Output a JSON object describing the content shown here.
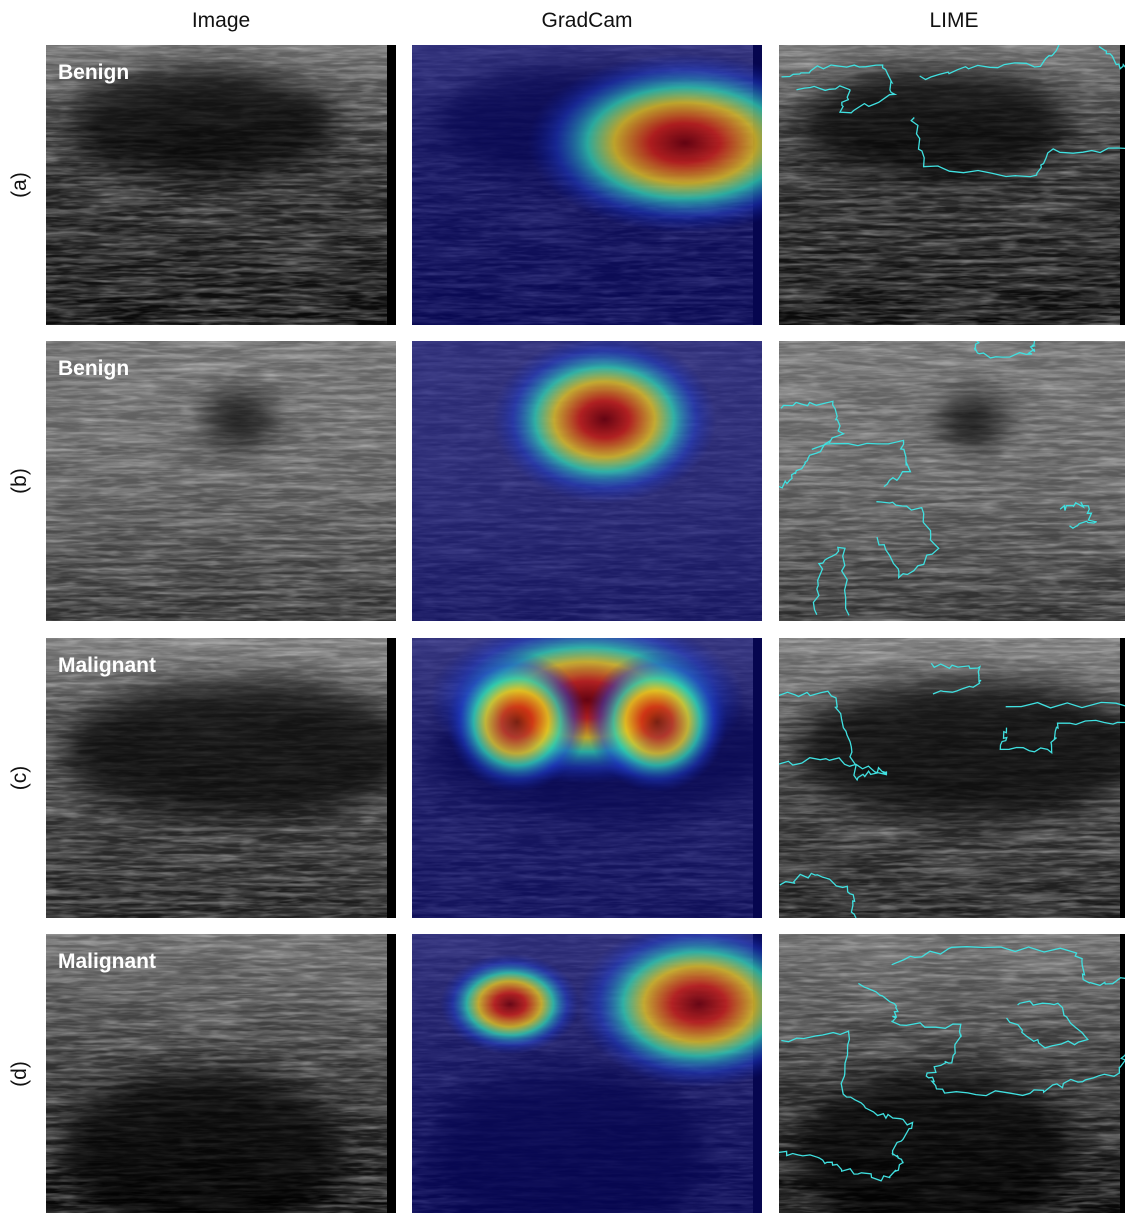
{
  "columns": [
    "Image",
    "GradCam",
    "LIME"
  ],
  "rows": [
    {
      "label": "(a)",
      "class": "Benign"
    },
    {
      "label": "(b)",
      "class": "Benign"
    },
    {
      "label": "(c)",
      "class": "Malignant"
    },
    {
      "label": "(d)",
      "class": "Malignant"
    }
  ]
}
